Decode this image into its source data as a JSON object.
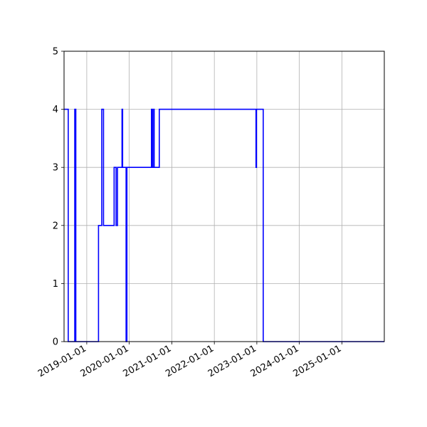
{
  "chart_data": {
    "type": "line",
    "title": "",
    "xlabel": "",
    "ylabel": "",
    "x_type": "date",
    "xlim": [
      "2018-06-20",
      "2025-12-31"
    ],
    "ylim": [
      0,
      5
    ],
    "grid": true,
    "x_ticks": [
      "2019-01-01",
      "2020-01-01",
      "2021-01-01",
      "2022-01-01",
      "2023-01-01",
      "2024-01-01",
      "2025-01-01"
    ],
    "x_tick_labels": [
      "2019-01-01",
      "2020-01-01",
      "2021-01-01",
      "2022-01-01",
      "2023-01-01",
      "2024-01-01",
      "2025-01-01"
    ],
    "y_ticks": [
      0,
      1,
      2,
      3,
      4,
      5
    ],
    "y_tick_labels": [
      "0",
      "1",
      "2",
      "3",
      "4",
      "5"
    ],
    "series": [
      {
        "style": "step",
        "color": "#0000ff",
        "points": [
          [
            "2018-06-20",
            4
          ],
          [
            "2018-07-26",
            4
          ],
          [
            "2018-07-26",
            0
          ],
          [
            "2018-09-20",
            0
          ],
          [
            "2018-09-20",
            4
          ],
          [
            "2018-09-29",
            4
          ],
          [
            "2018-09-29",
            0
          ],
          [
            "2019-04-12",
            0
          ],
          [
            "2019-04-12",
            2
          ],
          [
            "2019-05-10",
            2
          ],
          [
            "2019-05-10",
            4
          ],
          [
            "2019-05-25",
            4
          ],
          [
            "2019-05-25",
            2
          ],
          [
            "2019-08-24",
            2
          ],
          [
            "2019-08-24",
            3
          ],
          [
            "2019-09-10",
            3
          ],
          [
            "2019-09-10",
            2
          ],
          [
            "2019-09-22",
            2
          ],
          [
            "2019-09-22",
            3
          ],
          [
            "2019-10-31",
            3
          ],
          [
            "2019-10-31",
            4
          ],
          [
            "2019-11-05",
            4
          ],
          [
            "2019-11-05",
            3
          ],
          [
            "2019-12-05",
            3
          ],
          [
            "2019-12-05",
            0
          ],
          [
            "2019-12-12",
            0
          ],
          [
            "2019-12-12",
            3
          ],
          [
            "2020-07-10",
            3
          ],
          [
            "2020-07-10",
            4
          ],
          [
            "2020-07-18",
            4
          ],
          [
            "2020-07-18",
            3
          ],
          [
            "2020-07-29",
            3
          ],
          [
            "2020-07-29",
            4
          ],
          [
            "2020-08-02",
            4
          ],
          [
            "2020-08-02",
            3
          ],
          [
            "2020-09-15",
            3
          ],
          [
            "2020-09-15",
            4
          ],
          [
            "2022-12-25",
            4
          ],
          [
            "2022-12-25",
            3
          ],
          [
            "2022-12-29",
            3
          ],
          [
            "2022-12-29",
            4
          ],
          [
            "2023-02-25",
            4
          ],
          [
            "2023-02-25",
            0
          ],
          [
            "2025-12-31",
            0
          ]
        ]
      }
    ]
  }
}
